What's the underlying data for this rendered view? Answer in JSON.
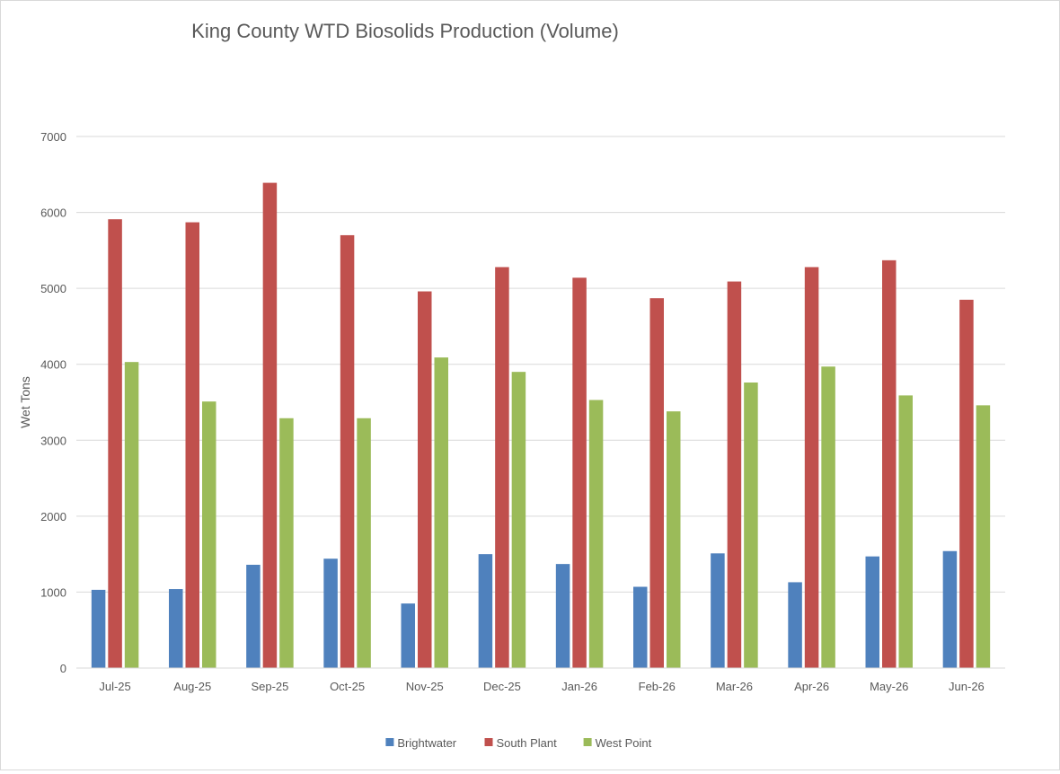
{
  "chart_data": {
    "type": "bar",
    "title": "King County WTD Biosolids Production (Volume)",
    "xlabel": "",
    "ylabel": "Wet Tons",
    "ylim": [
      0,
      7000
    ],
    "yticks": [
      0,
      1000,
      2000,
      3000,
      4000,
      5000,
      6000,
      7000
    ],
    "grid": true,
    "legend_position": "bottom",
    "categories": [
      "Jul-25",
      "Aug-25",
      "Sep-25",
      "Oct-25",
      "Nov-25",
      "Dec-25",
      "Jan-26",
      "Feb-26",
      "Mar-26",
      "Apr-26",
      "May-26",
      "Jun-26"
    ],
    "series": [
      {
        "name": "Brightwater",
        "color": "#4f81bd",
        "values": [
          1030,
          1040,
          1360,
          1440,
          850,
          1500,
          1370,
          1070,
          1510,
          1130,
          1470,
          1540
        ]
      },
      {
        "name": "South Plant",
        "color": "#c0504d",
        "values": [
          5910,
          5870,
          6390,
          5700,
          4960,
          5280,
          5140,
          4870,
          5090,
          5280,
          5370,
          4850
        ]
      },
      {
        "name": "West Point",
        "color": "#9bbb59",
        "values": [
          4030,
          3510,
          3290,
          3290,
          4090,
          3900,
          3530,
          3380,
          3760,
          3970,
          3590,
          3460
        ]
      }
    ]
  }
}
